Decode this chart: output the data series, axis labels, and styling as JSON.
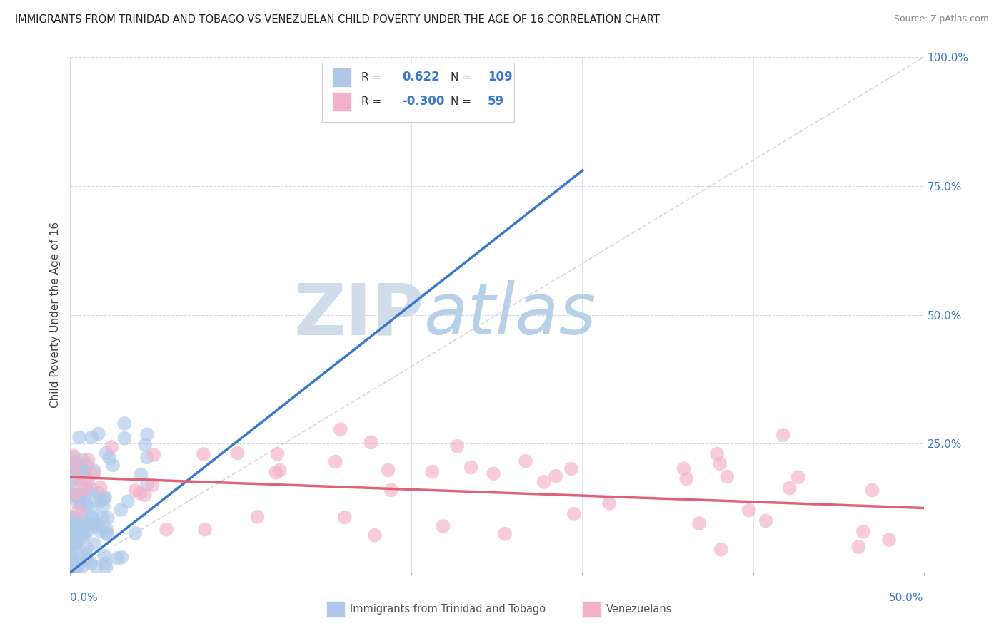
{
  "title": "IMMIGRANTS FROM TRINIDAD AND TOBAGO VS VENEZUELAN CHILD POVERTY UNDER THE AGE OF 16 CORRELATION CHART",
  "source": "Source: ZipAtlas.com",
  "ylabel": "Child Poverty Under the Age of 16",
  "blue_R": 0.622,
  "blue_N": 109,
  "pink_R": -0.3,
  "pink_N": 59,
  "blue_color": "#adc8e8",
  "pink_color": "#f4b0c8",
  "blue_line_color": "#3a78c9",
  "pink_line_color": "#e0607a",
  "ref_line_color": "#c8c8c8",
  "watermark_ZIP_color": "#c8d8ec",
  "watermark_atlas_color": "#aac4e0",
  "background_color": "#ffffff",
  "grid_color": "#d8d8e8",
  "title_color": "#222222",
  "legend_text_color": "#333333",
  "legend_value_color": "#3a78c9",
  "axis_label_color": "#3a78c9",
  "xlim": [
    0.0,
    0.5
  ],
  "ylim": [
    0.0,
    1.0
  ],
  "blue_line_x0": 0.0,
  "blue_line_y0": 0.0,
  "blue_line_x1": 0.3,
  "blue_line_y1": 0.78,
  "pink_line_x0": 0.0,
  "pink_line_y0": 0.185,
  "pink_line_x1": 0.5,
  "pink_line_y1": 0.125
}
